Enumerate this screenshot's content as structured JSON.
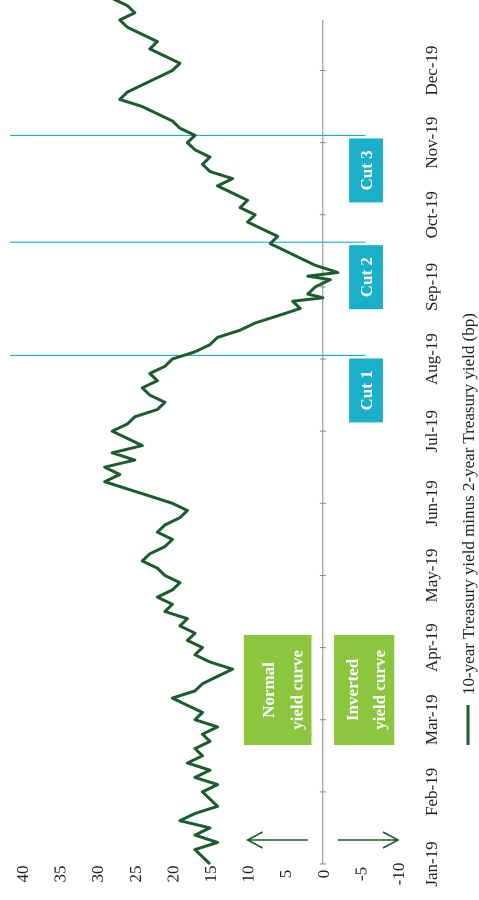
{
  "chart_data": {
    "type": "line",
    "title": "",
    "xlabel": "",
    "ylabel": "",
    "ylim": [
      -10,
      40
    ],
    "yticks": [
      -10,
      -5,
      0,
      5,
      10,
      15,
      20,
      25,
      30,
      35,
      40
    ],
    "xticks": [
      "Jan-19",
      "Feb-19",
      "Mar-19",
      "Apr-19",
      "May-19",
      "Jun-19",
      "Jul-19",
      "Aug-19",
      "Sep-19",
      "Oct-19",
      "Nov-19",
      "Dec-19"
    ],
    "grid": false,
    "legend_position": "bottom",
    "series": [
      {
        "name": "10-year Treasury yield minus 2-year Treasury yield (bp)",
        "color": "#1a5c2e",
        "points": [
          [
            0.0,
            15
          ],
          [
            0.1,
            16
          ],
          [
            0.2,
            17
          ],
          [
            0.3,
            14
          ],
          [
            0.4,
            17
          ],
          [
            0.5,
            15
          ],
          [
            0.6,
            19
          ],
          [
            0.7,
            17
          ],
          [
            0.8,
            14
          ],
          [
            0.9,
            15
          ],
          [
            1.0,
            16
          ],
          [
            1.1,
            14
          ],
          [
            1.2,
            17
          ],
          [
            1.3,
            15
          ],
          [
            1.4,
            18
          ],
          [
            1.5,
            16
          ],
          [
            1.6,
            17
          ],
          [
            1.7,
            15
          ],
          [
            1.8,
            16
          ],
          [
            1.9,
            14
          ],
          [
            2.0,
            17
          ],
          [
            2.1,
            16
          ],
          [
            2.2,
            18
          ],
          [
            2.3,
            20
          ],
          [
            2.4,
            17
          ],
          [
            2.5,
            16
          ],
          [
            2.6,
            14
          ],
          [
            2.7,
            12
          ],
          [
            2.8,
            15
          ],
          [
            2.9,
            17
          ],
          [
            3.0,
            16
          ],
          [
            3.1,
            18
          ],
          [
            3.2,
            17
          ],
          [
            3.3,
            19
          ],
          [
            3.4,
            18
          ],
          [
            3.5,
            21
          ],
          [
            3.6,
            20
          ],
          [
            3.7,
            22
          ],
          [
            3.8,
            20
          ],
          [
            3.9,
            19
          ],
          [
            4.0,
            21
          ],
          [
            4.1,
            22
          ],
          [
            4.2,
            24
          ],
          [
            4.3,
            23
          ],
          [
            4.4,
            21
          ],
          [
            4.5,
            20
          ],
          [
            4.6,
            22
          ],
          [
            4.7,
            21
          ],
          [
            4.8,
            19
          ],
          [
            4.9,
            18
          ],
          [
            5.0,
            20
          ],
          [
            5.1,
            23
          ],
          [
            5.2,
            26
          ],
          [
            5.3,
            29
          ],
          [
            5.4,
            27
          ],
          [
            5.5,
            29
          ],
          [
            5.6,
            25
          ],
          [
            5.7,
            28
          ],
          [
            5.8,
            24
          ],
          [
            5.9,
            26
          ],
          [
            6.0,
            28
          ],
          [
            6.1,
            26
          ],
          [
            6.2,
            25
          ],
          [
            6.3,
            22
          ],
          [
            6.4,
            21
          ],
          [
            6.5,
            23
          ],
          [
            6.6,
            24
          ],
          [
            6.7,
            22
          ],
          [
            6.8,
            23
          ],
          [
            6.9,
            21
          ],
          [
            7.0,
            20
          ],
          [
            7.1,
            17
          ],
          [
            7.2,
            15
          ],
          [
            7.3,
            14
          ],
          [
            7.4,
            11
          ],
          [
            7.5,
            9
          ],
          [
            7.6,
            6
          ],
          [
            7.7,
            3
          ],
          [
            7.8,
            4
          ],
          [
            7.85,
            0
          ],
          [
            7.9,
            2
          ],
          [
            8.0,
            1
          ],
          [
            8.1,
            -1
          ],
          [
            8.15,
            2
          ],
          [
            8.2,
            -2
          ],
          [
            8.3,
            1
          ],
          [
            8.4,
            3
          ],
          [
            8.5,
            5
          ],
          [
            8.6,
            7
          ],
          [
            8.7,
            6
          ],
          [
            8.8,
            8
          ],
          [
            8.9,
            10
          ],
          [
            9.0,
            9
          ],
          [
            9.1,
            11
          ],
          [
            9.2,
            10
          ],
          [
            9.3,
            12
          ],
          [
            9.4,
            14
          ],
          [
            9.5,
            12
          ],
          [
            9.6,
            15
          ],
          [
            9.7,
            16
          ],
          [
            9.8,
            15
          ],
          [
            9.9,
            17
          ],
          [
            10.0,
            18
          ],
          [
            10.1,
            17
          ],
          [
            10.2,
            19
          ],
          [
            10.3,
            20
          ],
          [
            10.4,
            22
          ],
          [
            10.5,
            24
          ],
          [
            10.6,
            27
          ],
          [
            10.7,
            26
          ],
          [
            10.8,
            24
          ],
          [
            10.9,
            22
          ],
          [
            11.0,
            20
          ],
          [
            11.1,
            19
          ],
          [
            11.2,
            21
          ],
          [
            11.3,
            23
          ],
          [
            11.4,
            22
          ],
          [
            11.5,
            24
          ],
          [
            11.6,
            26
          ],
          [
            11.7,
            27
          ],
          [
            11.8,
            25
          ],
          [
            11.9,
            26
          ],
          [
            12.0,
            28
          ],
          [
            12.1,
            30
          ],
          [
            12.2,
            32
          ],
          [
            12.3,
            31
          ],
          [
            12.4,
            34
          ],
          [
            12.5,
            37
          ],
          [
            12.6,
            36
          ],
          [
            12.7,
            39
          ]
        ]
      }
    ],
    "rate_cuts": [
      {
        "label": "Cut 1",
        "x": 7.05
      },
      {
        "label": "Cut 2",
        "x": 8.62
      },
      {
        "label": "Cut 3",
        "x": 10.1
      }
    ],
    "annotations": [
      {
        "label": "Normal yield curve",
        "color": "#8cc63f"
      },
      {
        "label": "Inverted yield curve",
        "color": "#8cc63f"
      }
    ],
    "line_color": "#1a5c2e",
    "cut_color": "#1ab0c9"
  }
}
